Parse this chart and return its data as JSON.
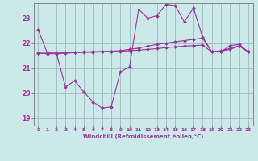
{
  "xlabel": "Windchill (Refroidissement éolien,°C)",
  "background_color": "#cce8e8",
  "line_color": "#993399",
  "grid_color": "#99bbbb",
  "xlim": [
    -0.5,
    23.5
  ],
  "ylim": [
    18.7,
    23.6
  ],
  "yticks": [
    19,
    20,
    21,
    22,
    23
  ],
  "xticks": [
    0,
    1,
    2,
    3,
    4,
    5,
    6,
    7,
    8,
    9,
    10,
    11,
    12,
    13,
    14,
    15,
    16,
    17,
    18,
    19,
    20,
    21,
    22,
    23
  ],
  "hours": [
    0,
    1,
    2,
    3,
    4,
    5,
    6,
    7,
    8,
    9,
    10,
    11,
    12,
    13,
    14,
    15,
    16,
    17,
    18,
    19,
    20,
    21,
    22,
    23
  ],
  "line1": [
    22.55,
    21.6,
    21.6,
    20.25,
    20.5,
    20.05,
    19.65,
    19.4,
    19.45,
    20.85,
    21.05,
    23.35,
    23.0,
    23.1,
    23.55,
    23.5,
    22.85,
    23.4,
    22.25,
    21.65,
    21.65,
    21.9,
    21.95,
    21.65
  ],
  "line2": [
    21.6,
    21.6,
    21.6,
    21.62,
    21.64,
    21.65,
    21.66,
    21.67,
    21.68,
    21.7,
    21.75,
    21.8,
    21.88,
    21.95,
    22.0,
    22.05,
    22.1,
    22.15,
    22.2,
    21.65,
    21.7,
    21.78,
    21.9,
    21.65
  ],
  "line3": [
    21.6,
    21.58,
    21.58,
    21.6,
    21.62,
    21.63,
    21.64,
    21.65,
    21.66,
    21.68,
    21.7,
    21.72,
    21.75,
    21.78,
    21.82,
    21.85,
    21.88,
    21.9,
    21.92,
    21.65,
    21.68,
    21.75,
    21.88,
    21.65
  ]
}
